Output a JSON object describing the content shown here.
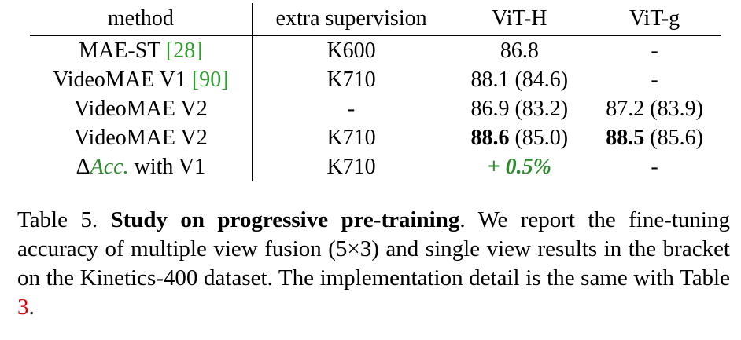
{
  "table": {
    "headers": [
      "method",
      "extra supervision",
      "ViT-H",
      "ViT-g"
    ],
    "rows": [
      {
        "method": "MAE-ST ",
        "cite": "[28]",
        "sup": "K600",
        "vith_bold": "",
        "vith": "86.8",
        "vitg_bold": "",
        "vitg": "-"
      },
      {
        "method": "VideoMAE V1 ",
        "cite": "[90]",
        "sup": "K710",
        "vith_bold": "",
        "vith": "88.1 (84.6)",
        "vitg_bold": "",
        "vitg": "-"
      },
      {
        "method": "VideoMAE V2",
        "cite": "",
        "sup": "-",
        "vith_bold": "",
        "vith": "86.9 (83.2)",
        "vitg_bold": "",
        "vitg": "87.2 (83.9)"
      },
      {
        "method": "VideoMAE V2",
        "cite": "",
        "sup": "K710",
        "vith_bold": "88.6",
        "vith": " (85.0)",
        "vitg_bold": "88.5",
        "vitg": " (85.6)"
      }
    ],
    "delta_row": {
      "delta": "Δ",
      "acc": "Acc.",
      "rest": " with V1",
      "sup": "K710",
      "vith_gain": "+ 0.5%",
      "vitg": "-"
    }
  },
  "caption": {
    "label": "Table 5. ",
    "title": "Study on progressive pre-training",
    "text1": ". We report the fine-tuning accuracy of multiple view fusion (5×3) and single view results in the bracket on the Kinetics-400 dataset. The implementation detail is the same with Table ",
    "ref": "3",
    "text2": "."
  }
}
